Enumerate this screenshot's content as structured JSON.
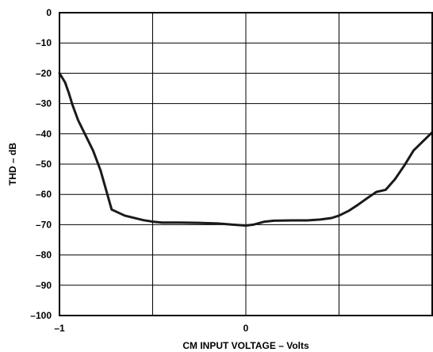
{
  "chart_data": {
    "type": "line",
    "title": "",
    "xlabel": "CM INPUT VOLTAGE – Volts",
    "ylabel": "THD – dB",
    "xlim": [
      -1,
      1
    ],
    "ylim": [
      -100,
      0
    ],
    "x_ticks": [
      -1,
      -0.5,
      0,
      0.5,
      1
    ],
    "x_tick_labels": [
      "–1",
      "",
      "0",
      "",
      ""
    ],
    "y_ticks": [
      0,
      -10,
      -20,
      -30,
      -40,
      -50,
      -60,
      -70,
      -80,
      -90,
      -100
    ],
    "y_tick_labels": [
      "0",
      "–10",
      "–20",
      "–30",
      "–40",
      "–50",
      "–60",
      "–70",
      "–80",
      "–90",
      "–100"
    ],
    "grid": true,
    "series": [
      {
        "color": "#1a1a1a",
        "x": [
          -1.0,
          -0.97,
          -0.95,
          -0.93,
          -0.9,
          -0.86,
          -0.82,
          -0.78,
          -0.75,
          -0.72,
          -0.65,
          -0.55,
          -0.5,
          -0.45,
          -0.35,
          -0.25,
          -0.15,
          -0.07,
          0.0,
          0.04,
          0.1,
          0.15,
          0.25,
          0.33,
          0.4,
          0.46,
          0.5,
          0.55,
          0.6,
          0.65,
          0.7,
          0.75,
          0.8,
          0.85,
          0.9,
          0.95,
          1.0
        ],
        "y": [
          -20,
          -23,
          -26.5,
          -30.5,
          -35.5,
          -40.5,
          -45.5,
          -52,
          -58.5,
          -65,
          -67,
          -68.5,
          -69,
          -69.3,
          -69.3,
          -69.4,
          -69.6,
          -70,
          -70.3,
          -70,
          -69,
          -68.7,
          -68.6,
          -68.6,
          -68.3,
          -67.8,
          -67,
          -65.5,
          -63.5,
          -61.3,
          -59.2,
          -58.5,
          -55,
          -50.5,
          -45.5,
          -42.5,
          -39.5
        ]
      }
    ]
  }
}
